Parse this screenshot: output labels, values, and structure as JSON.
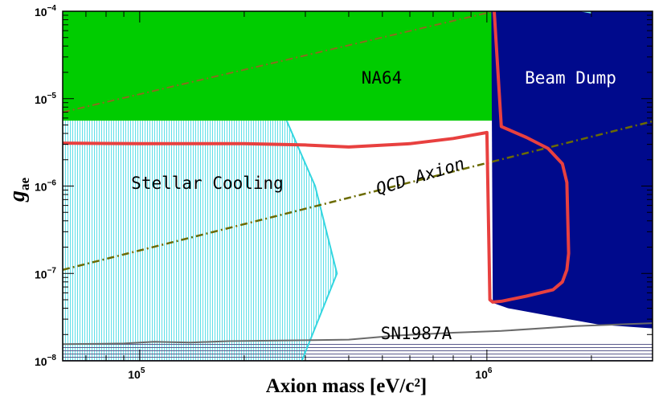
{
  "chart_data": {
    "type": "area",
    "x_scale": "log",
    "y_scale": "log",
    "xlim": [
      60000,
      3000000
    ],
    "ylim": [
      1e-08,
      0.0001
    ],
    "xlabel": "Axion mass [eV/c²]",
    "ylabel": "g_ae",
    "x_ticks": [
      {
        "value": 100000,
        "base": "10",
        "exp": "5"
      },
      {
        "value": 1000000,
        "base": "10",
        "exp": "6"
      }
    ],
    "y_ticks": [
      {
        "value": 1e-08,
        "base": "10",
        "exp": "−8"
      },
      {
        "value": 1e-07,
        "base": "10",
        "exp": "−7"
      },
      {
        "value": 1e-06,
        "base": "10",
        "exp": "−6"
      },
      {
        "value": 1e-05,
        "base": "10",
        "exp": "−5"
      },
      {
        "value": 0.0001,
        "base": "10",
        "exp": "−4"
      }
    ],
    "regions": {
      "na64": {
        "label": "NA64",
        "color": "#00cc00",
        "polygon": [
          [
            60000,
            0.0001
          ],
          [
            1050000,
            0.0001
          ],
          [
            1050000,
            5.6e-06
          ],
          [
            60000,
            5.6e-06
          ]
        ]
      },
      "beam_dump": {
        "label": "Beam Dump",
        "color": "#000a8c",
        "polygon": [
          [
            1030000,
            0.0001
          ],
          [
            3000000,
            0.0001
          ],
          [
            3000000,
            2.35e-08
          ],
          [
            2100000,
            2.6e-08
          ],
          [
            1500000,
            3.3e-08
          ],
          [
            1150000,
            4e-08
          ],
          [
            1040000,
            4.6e-08
          ]
        ]
      },
      "stellar_cooling": {
        "label": "Stellar Cooling",
        "color": "#33d6e0",
        "boundary": [
          [
            265000,
            5.6e-06
          ],
          [
            320000,
            1e-06
          ],
          [
            370000,
            1e-07
          ],
          [
            290000,
            9e-09
          ]
        ]
      },
      "sn1987a": {
        "label": "SN1987A",
        "color": "#4a4a88",
        "ymax": 1.6e-08
      },
      "qcd_axion": {
        "label": "QCD Axion",
        "color": "#6b6b00",
        "line": [
          [
            60000,
            1.1e-07
          ],
          [
            3000000,
            5.5e-06
          ]
        ]
      },
      "upper_dashdot": {
        "color": "#8c6a20",
        "line": [
          [
            60000,
            7e-06
          ],
          [
            1050000,
            0.0001
          ]
        ]
      }
    },
    "series": [
      {
        "color": "#e8403f",
        "points": [
          [
            60000,
            3.1e-06
          ],
          [
            100000,
            3.05e-06
          ],
          [
            200000,
            3.05e-06
          ],
          [
            300000,
            2.95e-06
          ],
          [
            400000,
            2.8e-06
          ],
          [
            600000,
            3.05e-06
          ],
          [
            800000,
            3.5e-06
          ],
          [
            1000000,
            4.1e-06
          ],
          [
            1020000,
            5e-08
          ],
          [
            1040000,
            4.7e-08
          ],
          [
            1100000,
            4.8e-08
          ],
          [
            1300000,
            5.5e-08
          ],
          [
            1550000,
            6.5e-08
          ],
          [
            1650000,
            8e-08
          ],
          [
            1700000,
            1.1e-07
          ],
          [
            1720000,
            1.7e-07
          ],
          [
            1700000,
            1.1e-06
          ],
          [
            1650000,
            1.8e-06
          ],
          [
            1500000,
            2.7e-06
          ],
          [
            1300000,
            3.6e-06
          ],
          [
            1100000,
            4.8e-06
          ],
          [
            1050000,
            0.0001
          ]
        ]
      },
      {
        "color": "#6a6a6a",
        "points": [
          [
            60000,
            1.55e-08
          ],
          [
            90000,
            1.58e-08
          ],
          [
            110000,
            1.65e-08
          ],
          [
            140000,
            1.62e-08
          ],
          [
            180000,
            1.68e-08
          ],
          [
            300000,
            1.72e-08
          ],
          [
            400000,
            1.75e-08
          ],
          [
            550000,
            1.95e-08
          ],
          [
            800000,
            2.1e-08
          ],
          [
            1100000,
            2.2e-08
          ],
          [
            1800000,
            2.5e-08
          ],
          [
            3000000,
            2.7e-08
          ]
        ]
      },
      {
        "color": "#6ee7ee",
        "points": [
          [
            1800000,
            0.000104
          ],
          [
            2000000,
            9.6e-05
          ]
        ]
      }
    ]
  }
}
